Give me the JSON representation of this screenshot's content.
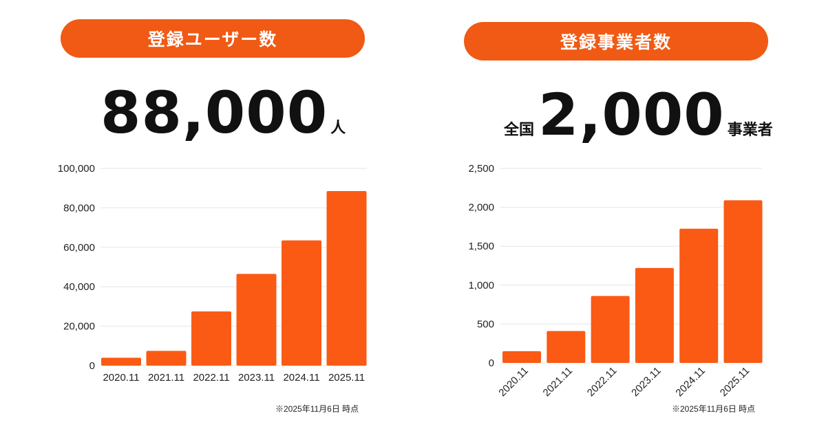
{
  "left": {
    "pill_label": "登録ユーザー数",
    "big_number": "88,000",
    "unit": "人",
    "note": "※2025年11月6日 時点"
  },
  "right": {
    "pill_label": "登録事業者数",
    "prefix": "全国",
    "big_number": "2,000",
    "unit": "事業者",
    "note": "※2025年11月6日 時点"
  },
  "colors": {
    "accent": "#f05a14",
    "bar": "#fa5a14",
    "grid": "#e6e6e6"
  },
  "chart_data": [
    {
      "type": "bar",
      "categories": [
        "2020.11",
        "2021.11",
        "2022.11",
        "2023.11",
        "2024.11",
        "2025.11"
      ],
      "values": [
        4000,
        7500,
        27500,
        46500,
        63500,
        88500
      ],
      "ylim": [
        0,
        100000
      ],
      "yticks": [
        0,
        20000,
        40000,
        60000,
        80000,
        100000
      ],
      "ytick_labels": [
        "0",
        "20,000",
        "40,000",
        "60,000",
        "80,000",
        "100,000"
      ],
      "grid": true
    },
    {
      "type": "bar",
      "categories": [
        "2020.11",
        "2021.11",
        "2022.11",
        "2023.11",
        "2024.11",
        "2025.11"
      ],
      "values": [
        150,
        410,
        860,
        1220,
        1725,
        2090
      ],
      "ylim": [
        0,
        2500
      ],
      "yticks": [
        0,
        500,
        1000,
        1500,
        2000,
        2500
      ],
      "ytick_labels": [
        "0",
        "500",
        "1,000",
        "1,500",
        "2,000",
        "2,500"
      ],
      "grid": true
    }
  ]
}
